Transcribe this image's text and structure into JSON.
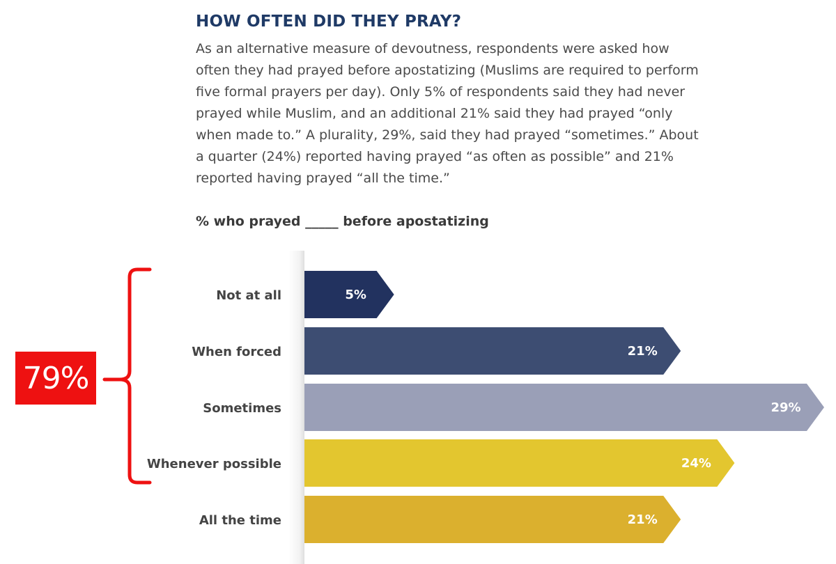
{
  "title": "HOW OFTEN DID THEY PRAY?",
  "body_lines": [
    "As an alternative measure of devoutness, respondents were asked how",
    "often they had prayed before apostatizing (Muslims are required to perform",
    "five formal prayers per day). Only 5% of respondents said they had never",
    "prayed while Muslim, and an additional 21% said they had prayed “only",
    "when made to.” A plurality, 29%, said they had prayed “sometimes.” About",
    "a quarter (24%) reported having prayed “as often as possible” and 21%",
    "reported having prayed “all the time.”"
  ],
  "chart_data": {
    "type": "bar",
    "orientation": "horizontal",
    "title": "% who prayed _____ before apostatizing",
    "categories": [
      "Not at all",
      "When forced",
      "Sometimes",
      "Whenever possible",
      "All the time"
    ],
    "values": [
      5,
      21,
      29,
      24,
      21
    ],
    "value_labels": [
      "5%",
      "21%",
      "29%",
      "24%",
      "21%"
    ],
    "colors": [
      "#22325f",
      "#3d4d72",
      "#9a9fb7",
      "#e3c62f",
      "#dbb02e"
    ],
    "xlim": [
      0,
      29
    ]
  },
  "callout": {
    "label": "79%",
    "covers": [
      "Not at all",
      "When forced",
      "Sometimes",
      "Whenever possible"
    ],
    "color": "#ee1111"
  }
}
